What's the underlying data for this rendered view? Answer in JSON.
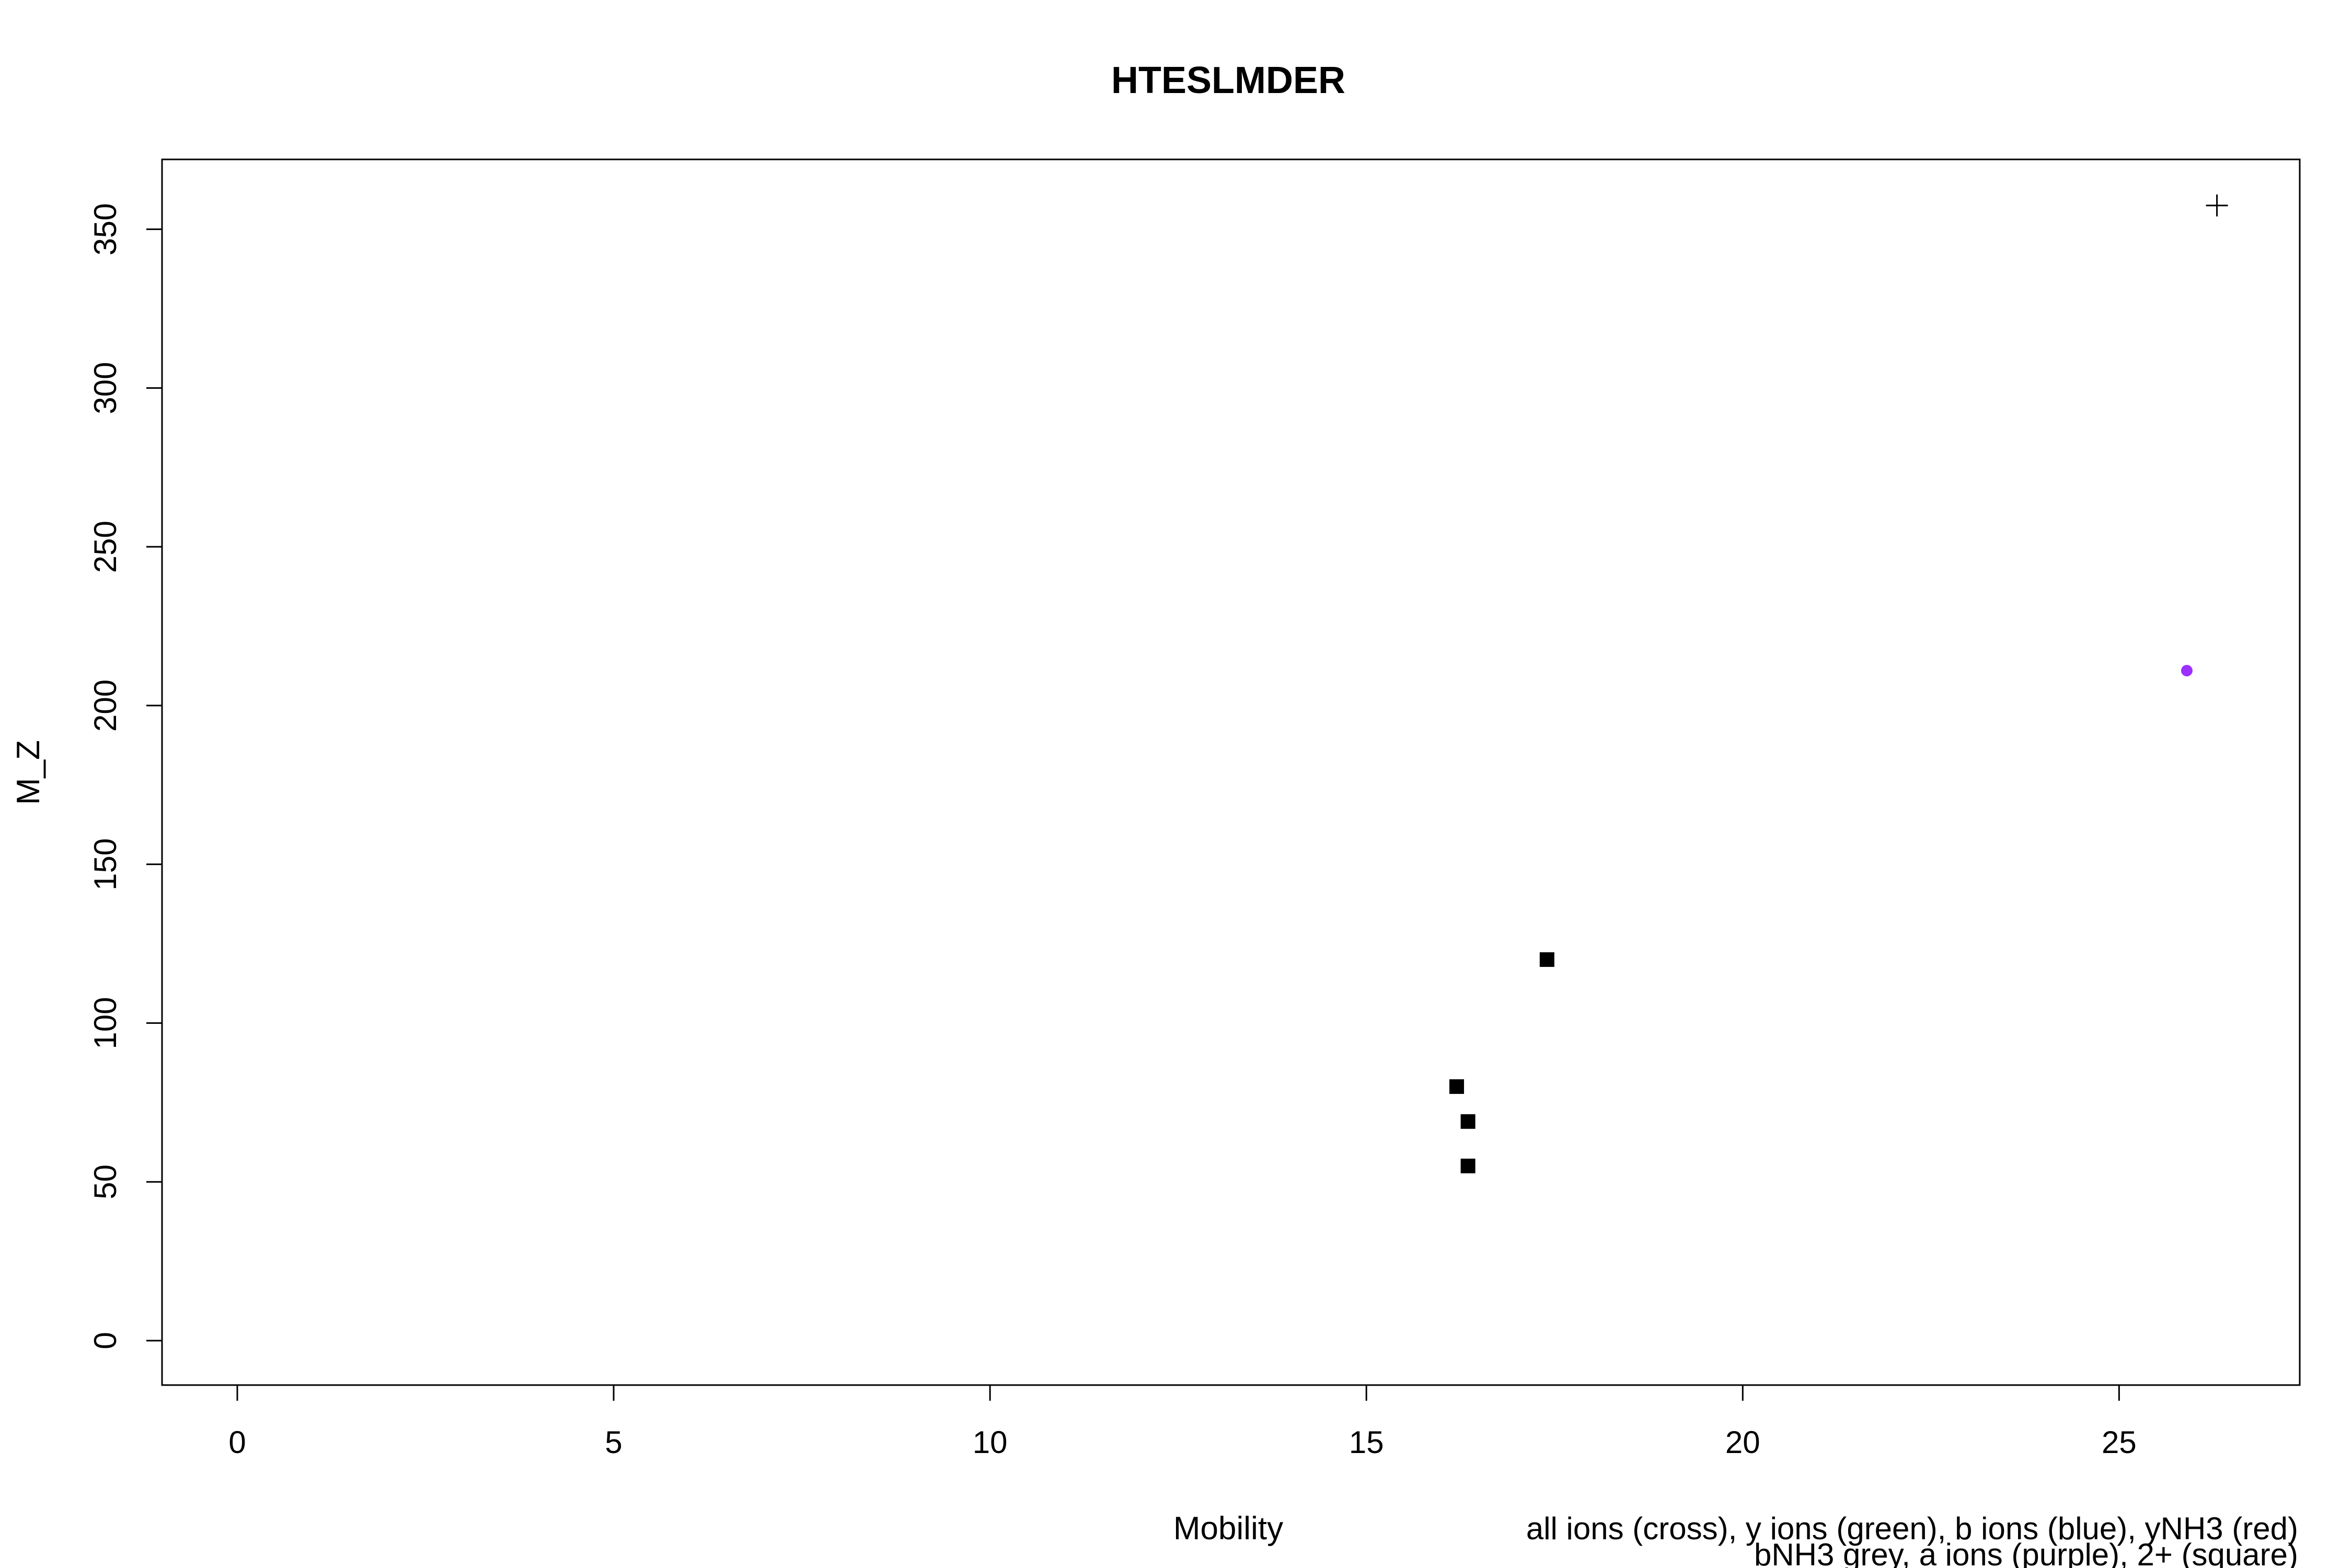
{
  "chart_data": {
    "type": "scatter",
    "title": "HTESLMDER",
    "xlabel": "Mobility",
    "ylabel": "M_Z",
    "xlim": [
      -1,
      27.4
    ],
    "ylim": [
      -14,
      372
    ],
    "x_ticks": [
      0,
      5,
      10,
      15,
      20,
      25
    ],
    "y_ticks": [
      0,
      50,
      100,
      150,
      200,
      250,
      300,
      350
    ],
    "grid": false,
    "legend_notes": [
      "all ions (cross), y ions (green), b ions (blue), yNH3 (red)",
      "bNH3 grey, a ions (purple), 2+ (square)"
    ],
    "series": [
      {
        "marker": "cross",
        "color": "#000000",
        "points": [
          {
            "x": 26.3,
            "y": 357.5
          }
        ]
      },
      {
        "marker": "circle",
        "color": "#9b30ff",
        "points": [
          {
            "x": 25.9,
            "y": 211
          }
        ]
      },
      {
        "marker": "square",
        "color": "#000000",
        "points": [
          {
            "x": 17.4,
            "y": 120
          },
          {
            "x": 16.2,
            "y": 80
          },
          {
            "x": 16.35,
            "y": 69
          },
          {
            "x": 16.35,
            "y": 55
          }
        ]
      }
    ]
  }
}
